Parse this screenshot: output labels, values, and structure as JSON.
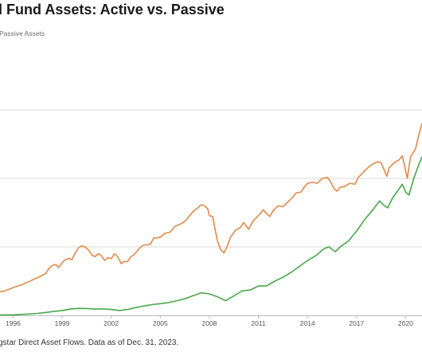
{
  "header": {
    "title": "l Fund Assets: Active vs. Passive",
    "subtitle": "Passive Assets"
  },
  "footer": {
    "source": "gstar Direct Asset Flows. Data as of Dec. 31, 2023."
  },
  "colors": {
    "active": "#e08a4c",
    "passive": "#47a84a",
    "grid": "#d9d9d9",
    "axis": "#bbbbbb",
    "tick_text": "#555555"
  },
  "chart_data": {
    "type": "line",
    "title": "",
    "xlabel": "",
    "ylabel": "",
    "x_ticks": [
      "1996",
      "1999",
      "2002",
      "2005",
      "2008",
      "2011",
      "2014",
      "2017",
      "2020"
    ],
    "xlim": [
      1995.2,
      2021.0
    ],
    "ylim": [
      0,
      14
    ],
    "gridlines_y": [
      3.5,
      7,
      10.5
    ],
    "grid": true,
    "legend": "none",
    "series": [
      {
        "key": "active",
        "points": [
          [
            1995.2,
            1.2
          ],
          [
            1995.5,
            1.25
          ],
          [
            1995.8,
            1.35
          ],
          [
            1996.1,
            1.45
          ],
          [
            1996.5,
            1.55
          ],
          [
            1996.9,
            1.7
          ],
          [
            1997.3,
            1.85
          ],
          [
            1997.7,
            2.0
          ],
          [
            1998.0,
            2.15
          ],
          [
            1998.2,
            2.4
          ],
          [
            1998.4,
            2.55
          ],
          [
            1998.6,
            2.6
          ],
          [
            1998.8,
            2.45
          ],
          [
            1999.0,
            2.7
          ],
          [
            1999.2,
            2.85
          ],
          [
            1999.4,
            2.9
          ],
          [
            1999.6,
            2.85
          ],
          [
            1999.8,
            3.2
          ],
          [
            2000.0,
            3.45
          ],
          [
            2000.2,
            3.55
          ],
          [
            2000.4,
            3.5
          ],
          [
            2000.6,
            3.35
          ],
          [
            2000.8,
            3.1
          ],
          [
            2001.0,
            3.0
          ],
          [
            2001.2,
            3.15
          ],
          [
            2001.4,
            3.05
          ],
          [
            2001.6,
            2.8
          ],
          [
            2001.8,
            2.95
          ],
          [
            2002.0,
            2.9
          ],
          [
            2002.2,
            3.15
          ],
          [
            2002.4,
            3.0
          ],
          [
            2002.6,
            2.65
          ],
          [
            2002.8,
            2.75
          ],
          [
            2003.0,
            2.75
          ],
          [
            2003.2,
            3.0
          ],
          [
            2003.4,
            3.1
          ],
          [
            2003.6,
            3.3
          ],
          [
            2003.8,
            3.5
          ],
          [
            2004.0,
            3.6
          ],
          [
            2004.2,
            3.6
          ],
          [
            2004.4,
            3.65
          ],
          [
            2004.6,
            3.95
          ],
          [
            2004.8,
            3.95
          ],
          [
            2005.0,
            4.0
          ],
          [
            2005.3,
            4.2
          ],
          [
            2005.6,
            4.25
          ],
          [
            2005.9,
            4.55
          ],
          [
            2006.2,
            4.65
          ],
          [
            2006.5,
            4.8
          ],
          [
            2006.8,
            5.1
          ],
          [
            2007.0,
            5.3
          ],
          [
            2007.3,
            5.5
          ],
          [
            2007.5,
            5.65
          ],
          [
            2007.7,
            5.6
          ],
          [
            2007.9,
            5.45
          ],
          [
            2008.0,
            5.1
          ],
          [
            2008.2,
            5.05
          ],
          [
            2008.35,
            4.4
          ],
          [
            2008.5,
            3.8
          ],
          [
            2008.7,
            3.35
          ],
          [
            2008.9,
            3.2
          ],
          [
            2009.1,
            3.55
          ],
          [
            2009.3,
            4.0
          ],
          [
            2009.6,
            4.35
          ],
          [
            2009.9,
            4.5
          ],
          [
            2010.1,
            4.75
          ],
          [
            2010.4,
            4.4
          ],
          [
            2010.7,
            4.85
          ],
          [
            2011.0,
            5.1
          ],
          [
            2011.3,
            5.4
          ],
          [
            2011.5,
            5.2
          ],
          [
            2011.7,
            5.05
          ],
          [
            2011.9,
            5.35
          ],
          [
            2012.2,
            5.6
          ],
          [
            2012.5,
            5.55
          ],
          [
            2012.8,
            5.8
          ],
          [
            2013.0,
            5.95
          ],
          [
            2013.3,
            6.25
          ],
          [
            2013.6,
            6.3
          ],
          [
            2013.8,
            6.55
          ],
          [
            2014.0,
            6.75
          ],
          [
            2014.3,
            6.8
          ],
          [
            2014.6,
            6.75
          ],
          [
            2014.9,
            7.0
          ],
          [
            2015.2,
            7.05
          ],
          [
            2015.4,
            6.85
          ],
          [
            2015.6,
            6.5
          ],
          [
            2015.8,
            6.35
          ],
          [
            2016.0,
            6.55
          ],
          [
            2016.3,
            6.6
          ],
          [
            2016.6,
            6.75
          ],
          [
            2016.9,
            6.7
          ],
          [
            2017.1,
            7.05
          ],
          [
            2017.4,
            7.3
          ],
          [
            2017.7,
            7.55
          ],
          [
            2018.0,
            7.75
          ],
          [
            2018.3,
            7.85
          ],
          [
            2018.5,
            7.8
          ],
          [
            2018.7,
            7.4
          ],
          [
            2018.85,
            7.1
          ],
          [
            2019.0,
            7.55
          ],
          [
            2019.3,
            7.8
          ],
          [
            2019.6,
            7.95
          ],
          [
            2019.8,
            8.15
          ],
          [
            2019.95,
            7.6
          ],
          [
            2020.1,
            7.0
          ],
          [
            2020.3,
            8.1
          ],
          [
            2020.6,
            8.5
          ],
          [
            2020.8,
            9.2
          ],
          [
            2021.0,
            9.8
          ]
        ]
      },
      {
        "key": "passive",
        "points": [
          [
            1995.2,
            0.02
          ],
          [
            1996.0,
            0.03
          ],
          [
            1996.5,
            0.05
          ],
          [
            1997.0,
            0.07
          ],
          [
            1997.5,
            0.1
          ],
          [
            1998.0,
            0.15
          ],
          [
            1998.5,
            0.2
          ],
          [
            1999.0,
            0.25
          ],
          [
            1999.5,
            0.32
          ],
          [
            2000.0,
            0.36
          ],
          [
            2000.5,
            0.35
          ],
          [
            2001.0,
            0.32
          ],
          [
            2001.5,
            0.33
          ],
          [
            2002.0,
            0.3
          ],
          [
            2002.5,
            0.25
          ],
          [
            2003.0,
            0.3
          ],
          [
            2003.5,
            0.4
          ],
          [
            2004.0,
            0.48
          ],
          [
            2004.5,
            0.55
          ],
          [
            2005.0,
            0.6
          ],
          [
            2005.5,
            0.65
          ],
          [
            2006.0,
            0.75
          ],
          [
            2006.5,
            0.85
          ],
          [
            2007.0,
            1.0
          ],
          [
            2007.5,
            1.15
          ],
          [
            2008.0,
            1.1
          ],
          [
            2008.5,
            0.95
          ],
          [
            2009.0,
            0.75
          ],
          [
            2009.5,
            1.0
          ],
          [
            2010.0,
            1.25
          ],
          [
            2010.5,
            1.3
          ],
          [
            2011.0,
            1.5
          ],
          [
            2011.5,
            1.5
          ],
          [
            2012.0,
            1.75
          ],
          [
            2012.5,
            1.95
          ],
          [
            2013.0,
            2.2
          ],
          [
            2013.5,
            2.5
          ],
          [
            2014.0,
            2.8
          ],
          [
            2014.5,
            3.05
          ],
          [
            2015.0,
            3.4
          ],
          [
            2015.3,
            3.5
          ],
          [
            2015.7,
            3.25
          ],
          [
            2016.0,
            3.5
          ],
          [
            2016.5,
            3.8
          ],
          [
            2017.0,
            4.3
          ],
          [
            2017.5,
            4.9
          ],
          [
            2018.0,
            5.4
          ],
          [
            2018.4,
            5.85
          ],
          [
            2018.7,
            5.6
          ],
          [
            2018.9,
            5.5
          ],
          [
            2019.2,
            6.0
          ],
          [
            2019.5,
            6.35
          ],
          [
            2019.8,
            6.7
          ],
          [
            2020.0,
            6.3
          ],
          [
            2020.2,
            6.15
          ],
          [
            2020.5,
            7.0
          ],
          [
            2020.8,
            7.7
          ],
          [
            2021.0,
            8.1
          ]
        ]
      }
    ]
  }
}
